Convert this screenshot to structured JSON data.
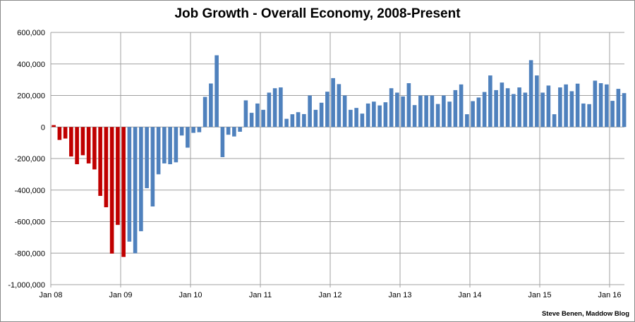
{
  "chart_data": {
    "type": "bar",
    "title": "Job Growth - Overall Economy, 2008-Present",
    "credit": "Steve Benen, Maddow Blog",
    "xlabel": "",
    "ylabel": "",
    "ylim": [
      -1000000,
      600000
    ],
    "y_ticks": [
      "600,000",
      "400,000",
      "200,000",
      "0",
      "-200,000",
      "-400,000",
      "-600,000",
      "-800,000",
      "-1,000,000"
    ],
    "y_tick_values": [
      600000,
      400000,
      200000,
      0,
      -200000,
      -400000,
      -600000,
      -800000,
      -1000000
    ],
    "x_ticks": [
      "Jan 08",
      "Jan 09",
      "Jan 10",
      "Jan 11",
      "Jan 12",
      "Jan 13",
      "Jan 14",
      "Jan 15",
      "Jan 16"
    ],
    "grid": true,
    "legend": "none",
    "start_month": "Jan 2008",
    "colors": {
      "highlighted": "#c00000",
      "default": "#4f81bd"
    },
    "highlighted_count": 13,
    "values": [
      12000,
      -82000,
      -73000,
      -187000,
      -236000,
      -179000,
      -231000,
      -269000,
      -437000,
      -509000,
      -803000,
      -621000,
      -824000,
      -727000,
      -801000,
      -661000,
      -388000,
      -504000,
      -300000,
      -231000,
      -236000,
      -224000,
      -54000,
      -131000,
      -37000,
      -33000,
      191000,
      276000,
      455000,
      -191000,
      -49000,
      -60000,
      -30000,
      169000,
      90000,
      149000,
      109000,
      218000,
      246000,
      251000,
      52000,
      81000,
      94000,
      82000,
      200000,
      109000,
      154000,
      224000,
      310000,
      272000,
      200000,
      109000,
      121000,
      85000,
      149000,
      161000,
      137000,
      157000,
      246000,
      218000,
      194000,
      278000,
      139000,
      200000,
      200000,
      200000,
      146000,
      200000,
      161000,
      234000,
      270000,
      81000,
      164000,
      187000,
      222000,
      327000,
      234000,
      282000,
      246000,
      209000,
      251000,
      218000,
      424000,
      327000,
      218000,
      263000,
      81000,
      251000,
      270000,
      227000,
      275000,
      149000,
      145000,
      294000,
      278000,
      270000,
      166000,
      242000,
      215000
    ]
  }
}
